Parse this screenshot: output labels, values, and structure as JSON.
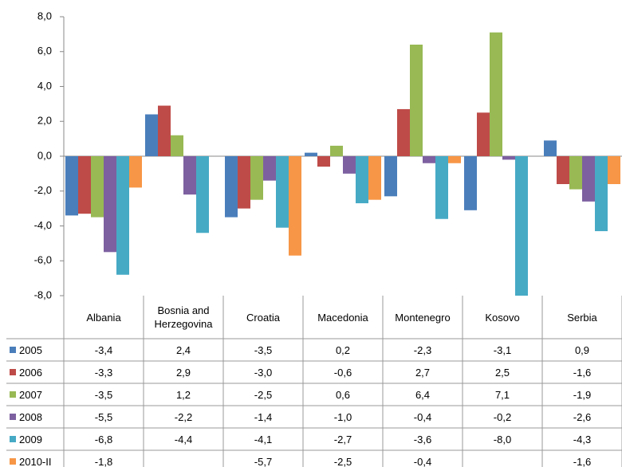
{
  "chart_data": {
    "type": "bar",
    "categories": [
      "Albania",
      "Bosnia and Herzegovina",
      "Croatia",
      "Macedonia",
      "Montenegro",
      "Kosovo",
      "Serbia"
    ],
    "series": [
      {
        "name": "2005",
        "color": "#4a7ebb",
        "values": [
          -3.4,
          2.4,
          -3.5,
          0.2,
          -2.3,
          -3.1,
          0.9
        ],
        "value_labels": [
          "-3,4",
          "2,4",
          "-3,5",
          "0,2",
          "-2,3",
          "-3,1",
          "0,9"
        ]
      },
      {
        "name": "2006",
        "color": "#be4b48",
        "values": [
          -3.3,
          2.9,
          -3.0,
          -0.6,
          2.7,
          2.5,
          -1.6
        ],
        "value_labels": [
          "-3,3",
          "2,9",
          "-3,0",
          "-0,6",
          "2,7",
          "2,5",
          "-1,6"
        ]
      },
      {
        "name": "2007",
        "color": "#98b954",
        "values": [
          -3.5,
          1.2,
          -2.5,
          0.6,
          6.4,
          7.1,
          -1.9
        ],
        "value_labels": [
          "-3,5",
          "1,2",
          "-2,5",
          "0,6",
          "6,4",
          "7,1",
          "-1,9"
        ]
      },
      {
        "name": "2008",
        "color": "#7d60a0",
        "values": [
          -5.5,
          -2.2,
          -1.4,
          -1.0,
          -0.4,
          -0.2,
          -2.6
        ],
        "value_labels": [
          "-5,5",
          "-2,2",
          "-1,4",
          "-1,0",
          "-0,4",
          "-0,2",
          "-2,6"
        ]
      },
      {
        "name": "2009",
        "color": "#46aac5",
        "values": [
          -6.8,
          -4.4,
          -4.1,
          -2.7,
          -3.6,
          -8.0,
          -4.3
        ],
        "value_labels": [
          "-6,8",
          "-4,4",
          "-4,1",
          "-2,7",
          "-3,6",
          "-8,0",
          "-4,3"
        ]
      },
      {
        "name": "2010-II",
        "color": "#f79646",
        "values": [
          -1.8,
          null,
          -5.7,
          -2.5,
          -0.4,
          null,
          -1.6
        ],
        "value_labels": [
          "-1,8",
          null,
          "-5,7",
          "-2,5",
          "-0,4",
          null,
          "-1,6"
        ]
      }
    ],
    "ylim": [
      -8,
      8
    ],
    "yticks": [
      {
        "value": -8,
        "label": "-8,0"
      },
      {
        "value": -6,
        "label": "-6,0"
      },
      {
        "value": -4,
        "label": "-4,0"
      },
      {
        "value": -2,
        "label": "-2,0"
      },
      {
        "value": 0,
        "label": "0,0"
      },
      {
        "value": 2,
        "label": "2,0"
      },
      {
        "value": 4,
        "label": "4,0"
      },
      {
        "value": 6,
        "label": "6,0"
      },
      {
        "value": 8,
        "label": "8,0"
      }
    ]
  }
}
